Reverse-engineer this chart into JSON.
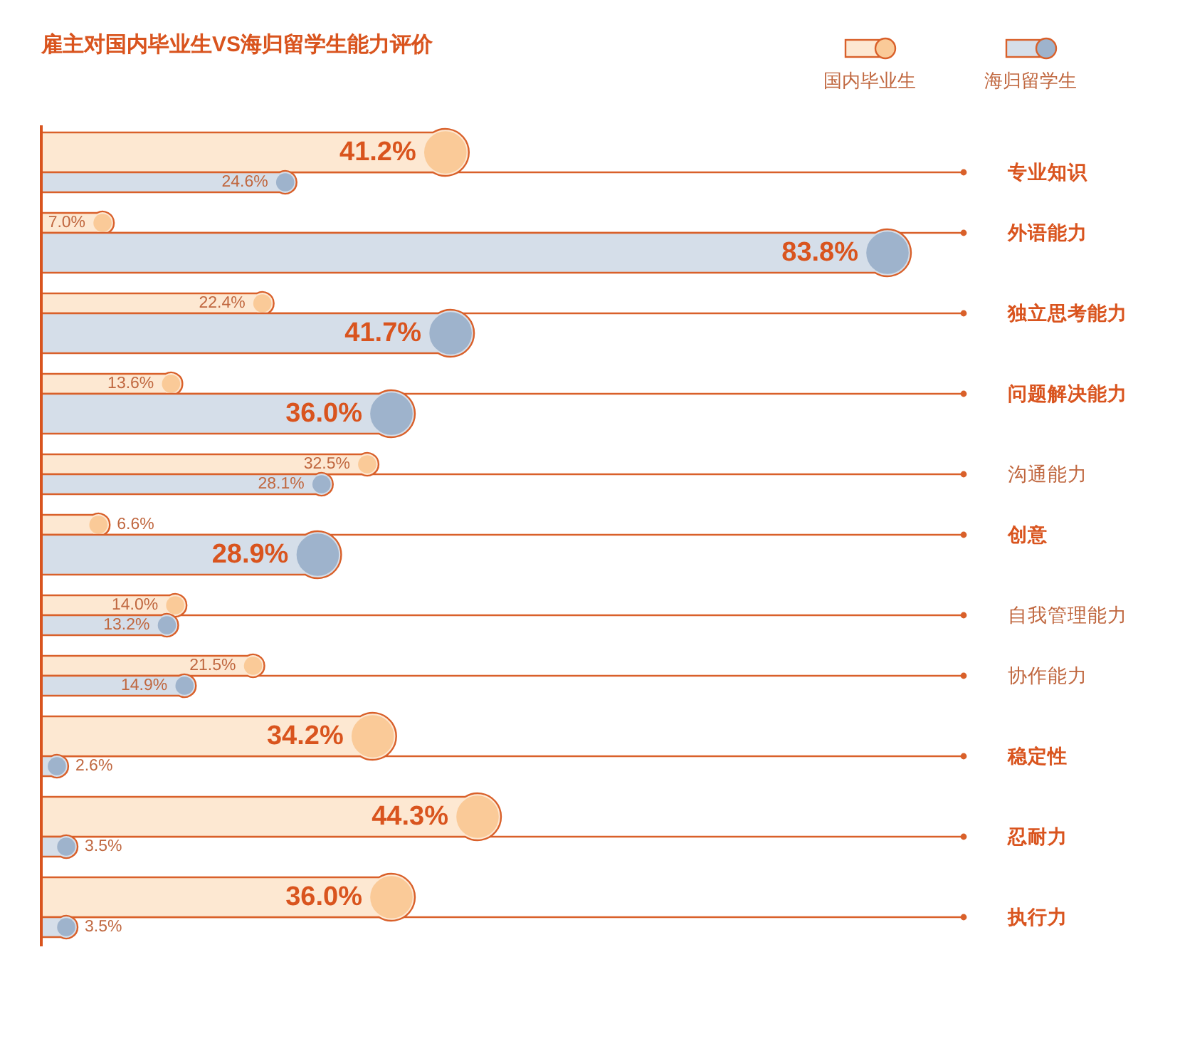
{
  "chart_data": {
    "type": "bar",
    "orientation": "horizontal",
    "title": "雇主对国内毕业生VS海归留学生能力评价",
    "categories": [
      "专业知识",
      "外语能力",
      "独立思考能力",
      "问题解决能力",
      "沟通能力",
      "创意",
      "自我管理能力",
      "协作能力",
      "稳定性",
      "忍耐力",
      "执行力"
    ],
    "series": [
      {
        "name": "国内毕业生",
        "color": "#fde8d2",
        "values": [
          41.2,
          7.0,
          22.4,
          13.6,
          32.5,
          6.6,
          14.0,
          21.5,
          34.2,
          44.3,
          36.0
        ],
        "value_labels": [
          "41.2%",
          "7.0%",
          "22.4%",
          "13.6%",
          "32.5%",
          "6.6%",
          "14.0%",
          "21.5%",
          "34.2%",
          "44.3%",
          "36.0%"
        ]
      },
      {
        "name": "海归留学生",
        "color": "#d5dee9",
        "values": [
          24.6,
          83.8,
          41.7,
          36.0,
          28.1,
          28.9,
          13.2,
          14.9,
          2.6,
          3.5,
          3.5
        ],
        "value_labels": [
          "24.6%",
          "83.8%",
          "41.7%",
          "36.0%",
          "28.1%",
          "28.9%",
          "13.2%",
          "14.9%",
          "2.6%",
          "3.5%",
          "3.5%"
        ]
      }
    ],
    "grid": "y",
    "legend": "top right",
    "tick_labels": "y"
  }
}
